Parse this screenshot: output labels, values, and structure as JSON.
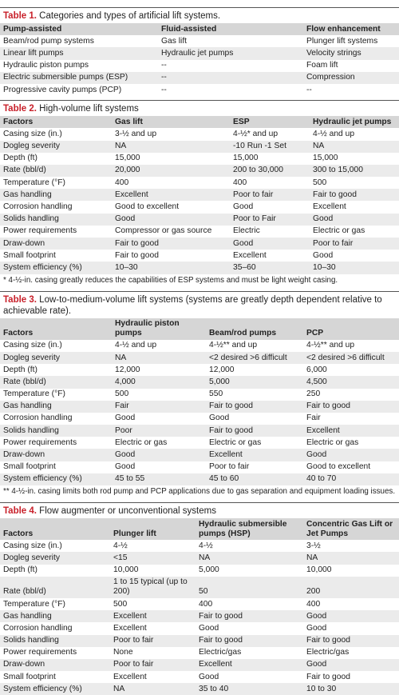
{
  "tables": [
    {
      "label": "Table 1.",
      "caption": "Categories and types of artificial lift systems.",
      "header": [
        "Pump-assisted",
        "Fluid-assisted",
        "Flow enhancement"
      ],
      "rows": [
        [
          "Beam/rod pump systems",
          "Gas lift",
          "Plunger lift systems"
        ],
        [
          "Linear lift pumps",
          "Hydraulic jet pumps",
          "Velocity strings"
        ],
        [
          "Hydraulic piston pumps",
          "--",
          "Foam lift"
        ],
        [
          "Electric submersible pumps (ESP)",
          "--",
          "Compression"
        ],
        [
          "Progressive cavity pumps (PCP)",
          "--",
          "--"
        ]
      ]
    },
    {
      "label": "Table 2.",
      "caption": "High-volume lift systems",
      "header": [
        "Factors",
        "Gas lift",
        "ESP",
        "Hydraulic jet pumps"
      ],
      "rows": [
        [
          "Casing size (in.)",
          "3-½ and up",
          "4-½* and up",
          "4-½ and up"
        ],
        [
          "Dogleg severity",
          "NA",
          "-10 Run -1 Set",
          "NA"
        ],
        [
          "Depth (ft)",
          "15,000",
          "15,000",
          "15,000"
        ],
        [
          "Rate (bbl/d)",
          "20,000",
          "200 to 30,000",
          "300 to 15,000"
        ],
        [
          "Temperature (°F)",
          "400",
          "400",
          "500"
        ],
        [
          "Gas handling",
          "Excellent",
          "Poor to fair",
          "Fair to good"
        ],
        [
          "Corrosion handling",
          "Good to excellent",
          "Good",
          "Excellent"
        ],
        [
          "Solids handling",
          "Good",
          "Poor to Fair",
          "Good"
        ],
        [
          "Power requirements",
          "Compressor or gas source",
          "Electric",
          "Electric or gas"
        ],
        [
          "Draw-down",
          "Fair to good",
          "Good",
          "Poor to fair"
        ],
        [
          "Small footprint",
          "Fair to good",
          "Excellent",
          "Good"
        ],
        [
          "System efficiency (%)",
          "10–30",
          "35–60",
          "10–30"
        ]
      ],
      "note": "* 4-½-in. casing greatly reduces the capabilities of ESP systems and must be light weight casing."
    },
    {
      "label": "Table 3.",
      "caption": "Low-to-medium-volume lift systems (systems are greatly depth dependent relative to achievable rate).",
      "header": [
        "Factors",
        "Hydraulic piston pumps",
        "Beam/rod pumps",
        "PCP"
      ],
      "rows": [
        [
          "Casing size (in.)",
          "4-½ and up",
          "4-½** and up",
          "4-½** and up"
        ],
        [
          "Dogleg severity",
          "NA",
          "<2 desired >6 difficult",
          "<2 desired >6 difficult"
        ],
        [
          "Depth (ft)",
          "12,000",
          "12,000",
          "6,000"
        ],
        [
          "Rate (bbl/d)",
          "4,000",
          "5,000",
          "4,500"
        ],
        [
          "Temperature (°F)",
          "500",
          "550",
          "250"
        ],
        [
          "Gas handling",
          "Fair",
          "Fair to good",
          "Fair to good"
        ],
        [
          "Corrosion handling",
          "Good",
          "Good",
          "Fair"
        ],
        [
          "Solids handling",
          "Poor",
          "Fair to good",
          "Excellent"
        ],
        [
          "Power requirements",
          "Electric or gas",
          "Electric or gas",
          "Electric or gas"
        ],
        [
          "Draw-down",
          "Good",
          "Excellent",
          "Good"
        ],
        [
          "Small footprint",
          "Good",
          "Poor to fair",
          "Good to excellent"
        ],
        [
          "System efficiency (%)",
          "45 to 55",
          "45 to 60",
          "40 to 70"
        ]
      ],
      "note": "** 4-½-in. casing limits both rod pump and PCP applications due to gas separation and equipment loading issues."
    },
    {
      "label": "Table 4.",
      "caption": "Flow augmenter or unconventional systems",
      "header": [
        "Factors",
        "Plunger lift",
        "Hydraulic submersible pumps (HSP)",
        "Concentric Gas Lift or Jet Pumps"
      ],
      "rows": [
        [
          "Casing size (in.)",
          "4-½",
          "4-½",
          "3-½"
        ],
        [
          "Dogleg severity",
          "<15",
          "NA",
          "NA"
        ],
        [
          "Depth (ft)",
          "10,000",
          "5,000",
          "10,000"
        ],
        [
          "Rate (bbl/d)",
          "1 to 15 typical (up to 200)",
          "50",
          "200"
        ],
        [
          "Temperature (°F)",
          "500",
          "400",
          "400"
        ],
        [
          "Gas handling",
          "Excellent",
          "Fair to good",
          "Good"
        ],
        [
          "Corrosion handling",
          "Excellent",
          "Good",
          "Good"
        ],
        [
          "Solids handling",
          "Poor to fair",
          "Fair to good",
          "Fair to good"
        ],
        [
          "Power requirements",
          "None",
          "Electric/gas",
          "Electric/gas"
        ],
        [
          "Draw-down",
          "Poor to fair",
          "Excellent",
          "Good"
        ],
        [
          "Small footprint",
          "Excellent",
          "Good",
          "Fair to good"
        ],
        [
          "System efficiency (%)",
          "NA",
          "35 to 40",
          "10 to 30"
        ]
      ]
    }
  ]
}
